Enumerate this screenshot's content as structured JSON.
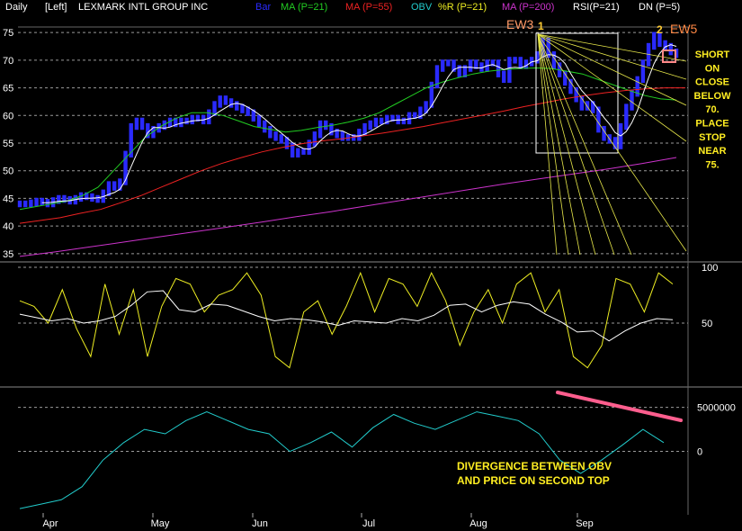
{
  "header": {
    "period": "Daily",
    "scale": "[Left]",
    "title": "LEXMARK INTL GROUP INC",
    "indicators": [
      {
        "label": "Bar",
        "color": "#2a2aff"
      },
      {
        "label": "MA (P=21)",
        "color": "#22cc22"
      },
      {
        "label": "MA (P=55)",
        "color": "#ee2222"
      },
      {
        "label": "OBV",
        "color": "#22cccc"
      },
      {
        "label": "%R (P=21)",
        "color": "#eeee22"
      },
      {
        "label": "MA (P=200)",
        "color": "#cc33cc"
      },
      {
        "label": "RSI(P=21)",
        "color": "#ffffff"
      },
      {
        "label": "DN (P=5)",
        "color": "#ffffff"
      }
    ]
  },
  "annotations": {
    "ew3": "EW3",
    "one": "1",
    "two": "2",
    "ew5": "EW5",
    "short_note": [
      "SHORT",
      "ON",
      "CLOSE",
      "BELOW",
      "70.",
      "PLACE",
      "STOP",
      "NEAR",
      "75."
    ],
    "divergence_note": [
      "DIVERGENCE BETWEEN OBV",
      "AND PRICE ON SECOND TOP"
    ]
  },
  "chart_data": [
    {
      "type": "line",
      "panel": "price",
      "months": [
        "Apr",
        "May",
        "Jun",
        "Jul",
        "Aug",
        "Sep"
      ],
      "y_ticks": [
        35,
        40,
        45,
        50,
        55,
        60,
        65,
        70,
        75
      ],
      "ylim": [
        34,
        76
      ],
      "bar_closes": [
        44,
        44,
        44.2,
        44.5,
        44.3,
        44,
        44.6,
        45,
        44.8,
        44.5,
        45,
        45.5,
        45.3,
        45,
        44.8,
        46,
        47.5,
        47,
        48,
        53,
        58,
        59,
        58,
        56.5,
        57.5,
        58,
        58.5,
        59,
        58.5,
        59,
        59,
        59.5,
        59.5,
        59,
        60.5,
        62,
        63,
        62.5,
        62,
        61.5,
        61,
        60.5,
        59.5,
        58.5,
        57.5,
        56.5,
        56,
        55.5,
        54.5,
        53,
        53.5,
        53.5,
        55,
        56.5,
        58.5,
        58,
        57,
        56.5,
        56,
        56,
        56,
        57,
        58,
        58.5,
        59,
        59,
        59.5,
        59.5,
        59,
        59,
        60,
        60,
        61,
        62,
        65.5,
        68.5,
        69.5,
        69.5,
        68.5,
        67.5,
        68.5,
        69.5,
        69,
        68.5,
        69.5,
        69.5,
        67.5,
        66.5,
        70,
        70,
        69,
        69.5,
        70,
        71,
        73.5,
        71,
        69,
        67.5,
        66,
        64.5,
        63,
        61.5,
        62,
        61,
        57.5,
        56,
        55.5,
        54.5,
        58,
        61.5,
        64,
        66.5,
        69.5,
        72.5,
        74.5,
        73,
        72.5,
        71.5,
        71
      ],
      "series": [
        {
          "name": "MA (P=21)",
          "values": [
            43,
            43.5,
            44,
            44.5,
            45.5,
            47,
            50,
            53,
            56,
            58,
            59.5,
            60.5,
            60.5,
            60,
            59,
            58,
            57.5,
            57,
            57.3,
            57.8,
            58.2,
            58.8,
            59.5,
            60.5,
            62,
            63.5,
            65,
            66,
            66.8,
            67.5,
            68,
            68.3,
            68.5,
            68.6,
            68.5,
            68,
            67.5,
            66.5,
            65.5,
            64.5,
            63.6,
            63,
            62.8
          ]
        },
        {
          "name": "MA (P=55)",
          "values": [
            40.5,
            41,
            41.5,
            42.3,
            43,
            44.2,
            45.5,
            47,
            48.5,
            50,
            51.3,
            52.4,
            53.4,
            54.2,
            54.9,
            55.4,
            55.8,
            56.3,
            56.8,
            57.4,
            58,
            58.7,
            59.4,
            60.1,
            60.8,
            61.6,
            62.3,
            63,
            63.6,
            64.1,
            64.5,
            64.8,
            65,
            65
          ]
        },
        {
          "name": "MA (P=200)",
          "values": [
            34.5,
            35.3,
            36.2,
            37.1,
            38,
            38.9,
            39.8,
            40.7,
            41.7,
            42.6,
            43.6,
            44.6,
            45.6,
            46.6,
            47.6,
            48.5,
            49.4,
            50.3,
            51.3,
            52.4
          ]
        }
      ]
    },
    {
      "type": "line",
      "panel": "oscillator",
      "y_ticks": [
        50,
        100
      ],
      "ylim": [
        0,
        100
      ],
      "series": [
        {
          "name": "%R (P=21)",
          "values": [
            70,
            65,
            50,
            80,
            45,
            20,
            85,
            40,
            80,
            20,
            65,
            90,
            85,
            60,
            75,
            80,
            95,
            75,
            20,
            10,
            60,
            70,
            40,
            65,
            95,
            60,
            90,
            85,
            65,
            95,
            70,
            30,
            60,
            80,
            50,
            85,
            95,
            60,
            80,
            20,
            10,
            30,
            90,
            85,
            60,
            95,
            85
          ]
        },
        {
          "name": "RSI(P=21)",
          "values": [
            58,
            55,
            52,
            54,
            50,
            52,
            56,
            66,
            78,
            79,
            62,
            60,
            67,
            66,
            61,
            56,
            52,
            54,
            53,
            51,
            48,
            52,
            51,
            50,
            54,
            52,
            57,
            66,
            67,
            60,
            66,
            69,
            67,
            58,
            51,
            42,
            43,
            34,
            43,
            50,
            54,
            53
          ]
        }
      ]
    },
    {
      "type": "line",
      "panel": "obv",
      "y_ticks": [
        0,
        5000000
      ],
      "ylim": [
        -7000000,
        6500000
      ],
      "series": [
        {
          "name": "OBV",
          "values": [
            -6500000,
            -6000000,
            -5500000,
            -4000000,
            -1000000,
            1000000,
            2500000,
            2000000,
            3500000,
            4500000,
            3500000,
            2500000,
            2000000,
            0,
            1000000,
            2200000,
            500000,
            2700000,
            4200000,
            3200000,
            2500000,
            3500000,
            4500000,
            4000000,
            3500000,
            2000000,
            -1000000,
            -2500000,
            -1000000,
            700000,
            2500000,
            1000000
          ]
        }
      ]
    }
  ]
}
